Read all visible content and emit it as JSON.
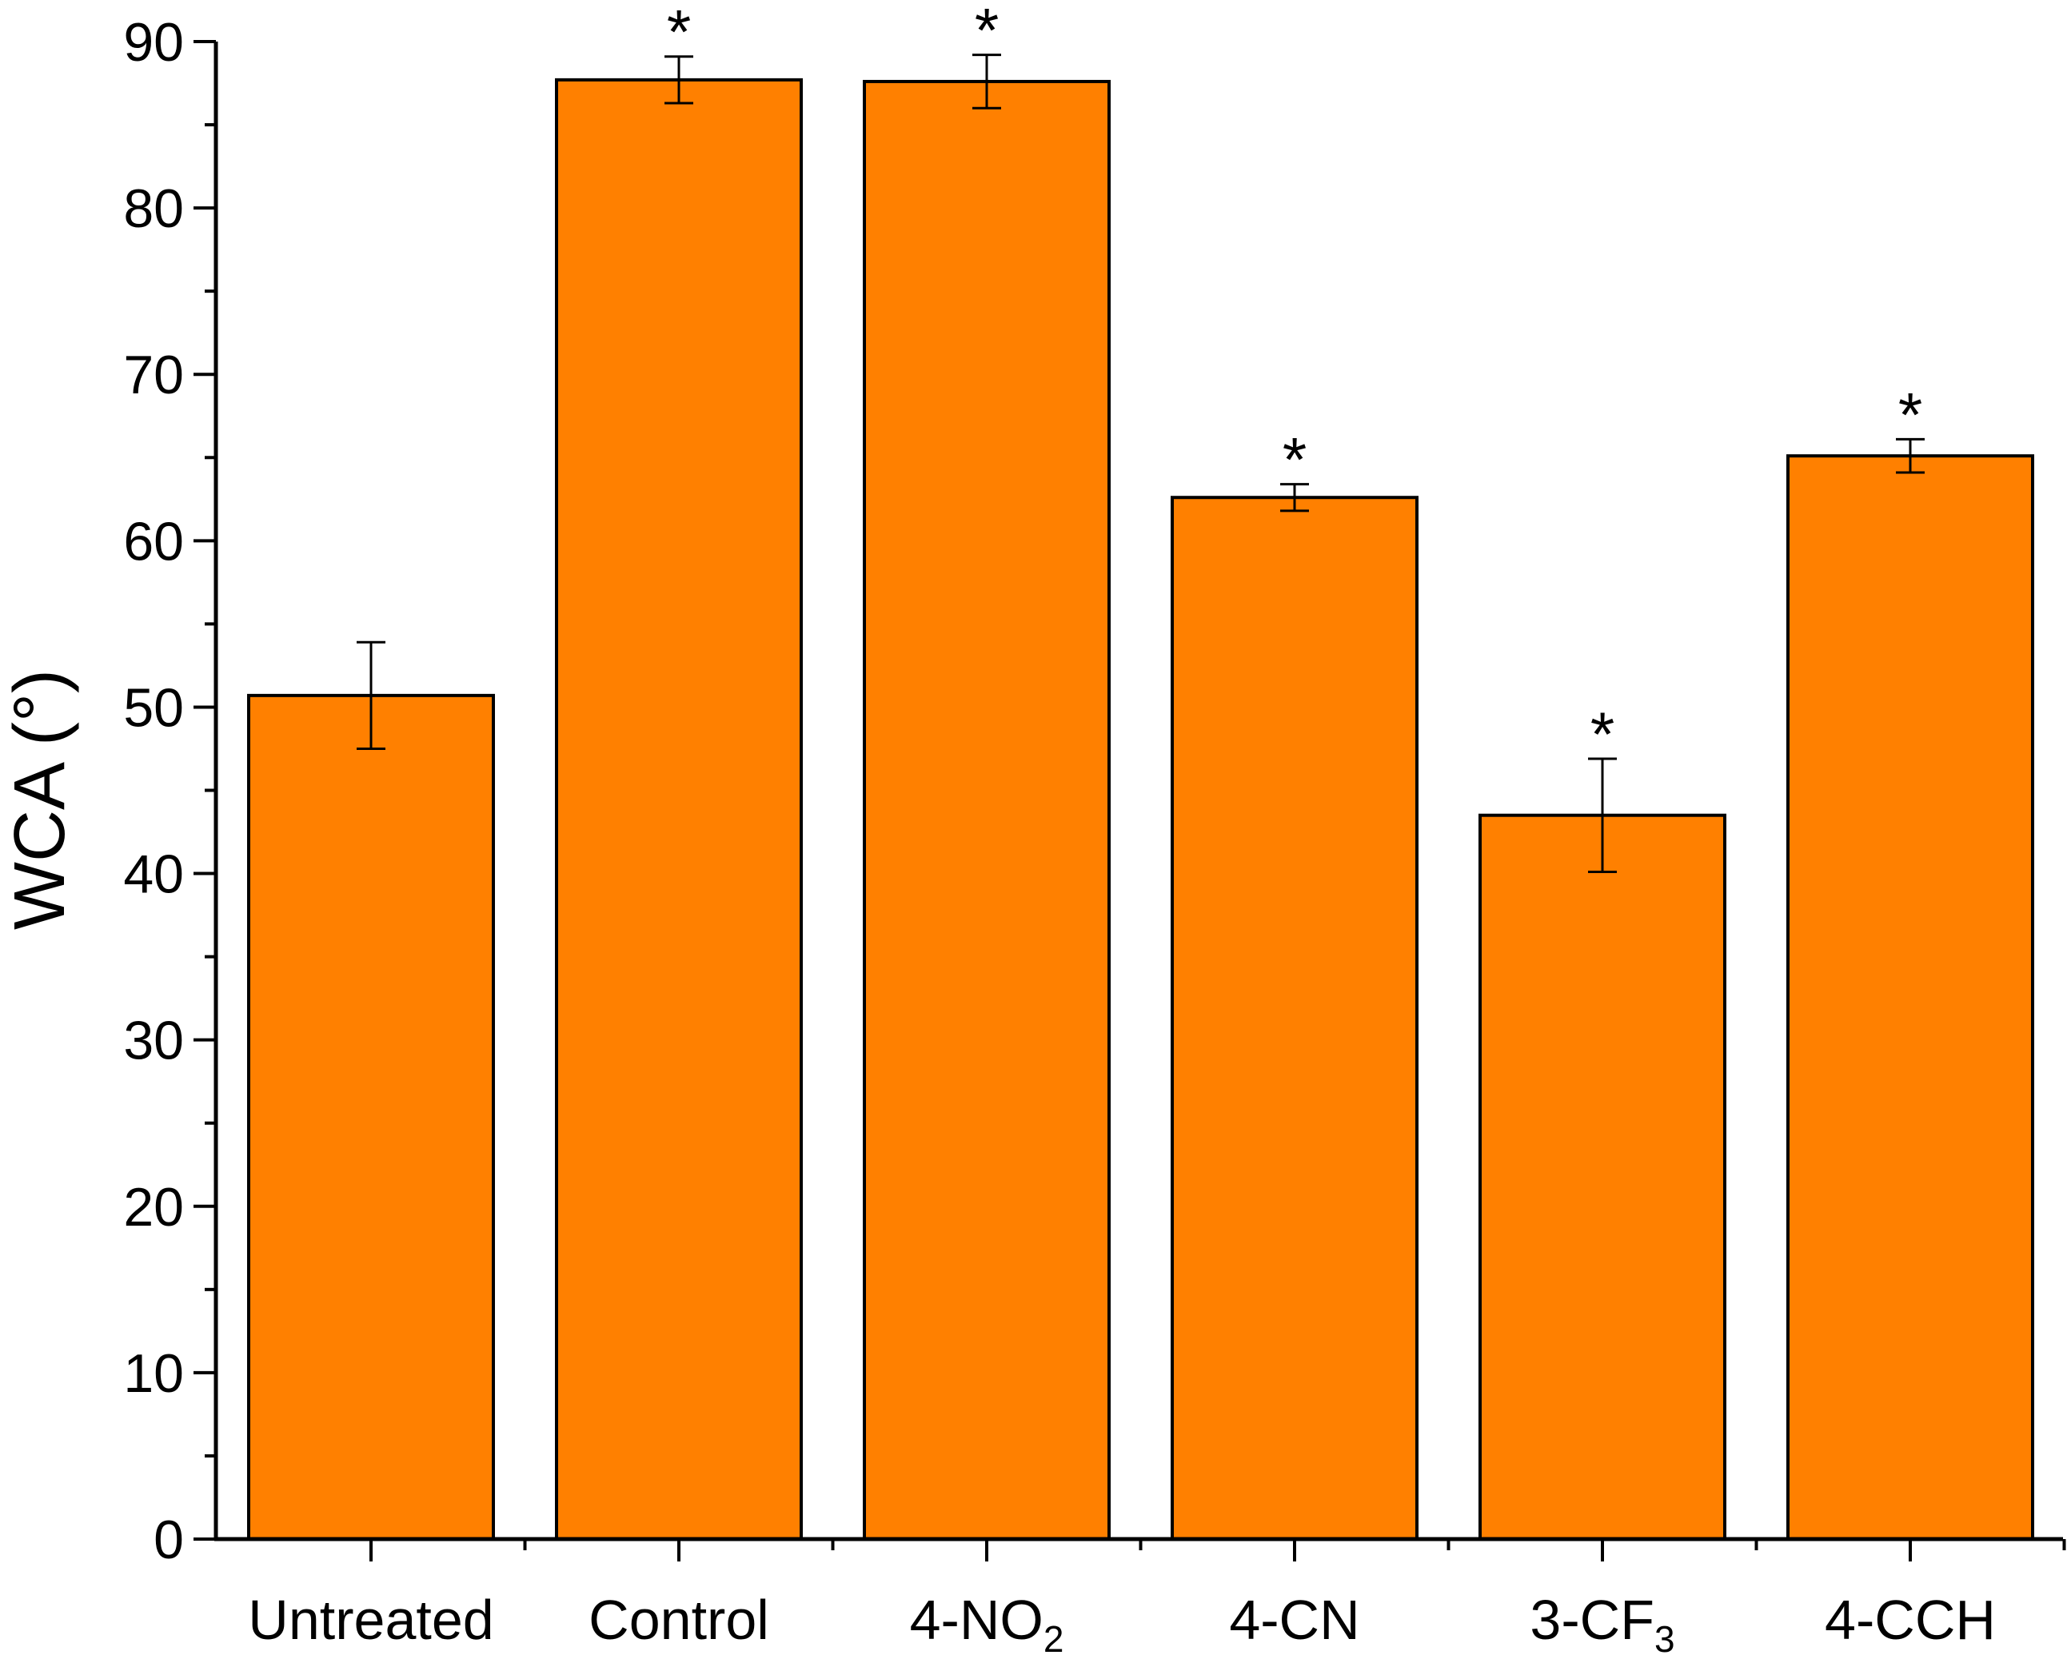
{
  "chart_data": {
    "type": "bar",
    "title": "",
    "xlabel": "",
    "ylabel": "WCA (°)",
    "ylim": [
      0,
      90
    ],
    "yticks": [
      0,
      10,
      20,
      30,
      40,
      50,
      60,
      70,
      80,
      90
    ],
    "grid": false,
    "legend": "none",
    "bar_color": "#FF8000",
    "categories": [
      {
        "label": "Untreated",
        "main": "Untreated",
        "sub": ""
      },
      {
        "label": "Control",
        "main": "Control",
        "sub": ""
      },
      {
        "label": "4-NO2",
        "main": "4-NO",
        "sub": "2"
      },
      {
        "label": "4-CN",
        "main": "4-CN",
        "sub": ""
      },
      {
        "label": "3-CF3",
        "main": "3-CF",
        "sub": "3"
      },
      {
        "label": "4-CCH",
        "main": "4-CCH",
        "sub": ""
      }
    ],
    "values": [
      50.7,
      87.7,
      87.6,
      62.6,
      43.5,
      65.1
    ],
    "errors": [
      3.2,
      1.4,
      1.6,
      0.8,
      3.4,
      1.0
    ],
    "annotations": [
      "",
      "*",
      "*",
      "*",
      "*",
      "*"
    ]
  }
}
